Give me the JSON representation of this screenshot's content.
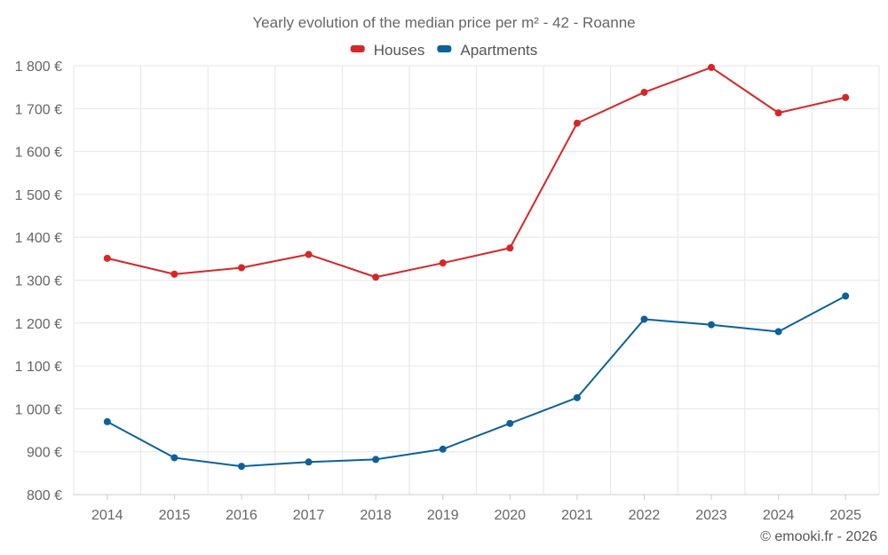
{
  "chart_data": {
    "type": "line",
    "title": "Yearly evolution of the median price per m² - 42 - Roanne",
    "categories": [
      "2014",
      "2015",
      "2016",
      "2017",
      "2018",
      "2019",
      "2020",
      "2021",
      "2022",
      "2023",
      "2024",
      "2025"
    ],
    "series": [
      {
        "name": "Houses",
        "color": "#d62728",
        "values": [
          1351,
          1314,
          1329,
          1360,
          1307,
          1340,
          1375,
          1666,
          1738,
          1796,
          1690,
          1726
        ]
      },
      {
        "name": "Apartments",
        "color": "#0d6199",
        "values": [
          970,
          886,
          866,
          876,
          882,
          906,
          966,
          1026,
          1209,
          1196,
          1180,
          1263
        ]
      }
    ],
    "ylim": [
      800,
      1800
    ],
    "yticks": [
      800,
      900,
      1000,
      1100,
      1200,
      1300,
      1400,
      1500,
      1600,
      1700,
      1800
    ],
    "ytick_labels": [
      "800 €",
      "900 €",
      "1 000 €",
      "1 100 €",
      "1 200 €",
      "1 300 €",
      "1 400 €",
      "1 500 €",
      "1 600 €",
      "1 700 €",
      "1 800 €"
    ],
    "grid": true,
    "legend": "top-center",
    "xlabel": "",
    "ylabel": ""
  },
  "credit": "© emooki.fr - 2026"
}
